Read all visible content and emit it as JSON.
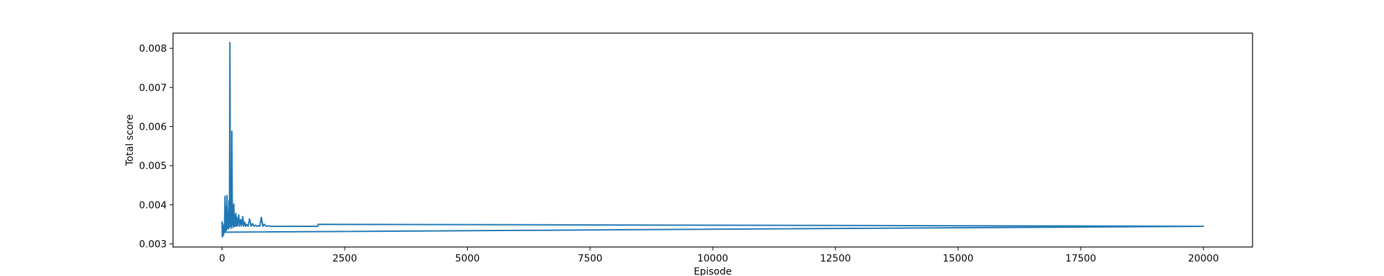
{
  "chart_data": {
    "type": "line",
    "title": "",
    "xlabel": "Episode",
    "ylabel": "Total score",
    "xlim": [
      -1000,
      21000
    ],
    "ylim": [
      0.00292,
      0.00839
    ],
    "grid": false,
    "colors": {
      "line": "#1f77b4",
      "axes": "#000000",
      "background": "#ffffff"
    },
    "x_ticks": [
      0,
      2500,
      5000,
      7500,
      10000,
      12500,
      15000,
      17500,
      20000
    ],
    "x_tick_labels": [
      "0",
      "2500",
      "5000",
      "7500",
      "10000",
      "12500",
      "15000",
      "17500",
      "20000"
    ],
    "y_ticks": [
      0.003,
      0.004,
      0.005,
      0.006,
      0.007,
      0.008
    ],
    "y_tick_labels": [
      "0.003",
      "0.004",
      "0.005",
      "0.006",
      "0.007",
      "0.008"
    ],
    "series": [
      {
        "x": [
          0,
          5,
          10,
          15,
          20,
          25,
          30,
          35,
          40,
          45,
          50,
          60,
          70,
          80,
          90,
          100,
          110,
          120,
          130,
          140,
          150,
          160,
          170,
          180,
          190,
          200,
          210,
          220,
          230,
          240,
          250,
          260,
          270,
          280,
          290,
          300,
          320,
          340,
          360,
          380,
          400,
          420,
          440,
          460,
          480,
          500,
          530,
          560,
          590,
          620,
          650,
          680,
          710,
          740,
          770,
          800,
          830,
          860,
          900,
          950,
          1000,
          1950,
          1960,
          20000,
          0,
          20000
        ],
        "y": [
          0.00358,
          0.00318,
          0.00352,
          0.0032,
          0.00345,
          0.00322,
          0.0034,
          0.00325,
          0.00348,
          0.0033,
          0.00342,
          0.00422,
          0.00332,
          0.00395,
          0.00335,
          0.00424,
          0.0034,
          0.0038,
          0.00338,
          0.0041,
          0.00342,
          0.00815,
          0.00345,
          0.00365,
          0.0034,
          0.00588,
          0.00348,
          0.00398,
          0.00342,
          0.00402,
          0.00345,
          0.00372,
          0.00346,
          0.00378,
          0.00345,
          0.00368,
          0.00346,
          0.00374,
          0.00345,
          0.00362,
          0.00346,
          0.0037,
          0.00345,
          0.00356,
          0.00345,
          0.0035,
          0.00345,
          0.00364,
          0.00345,
          0.00352,
          0.00345,
          0.00348,
          0.00345,
          0.00347,
          0.00345,
          0.00368,
          0.00345,
          0.0035,
          0.00345,
          0.00346,
          0.00345,
          0.00345,
          0.0035,
          0.00345,
          0.0033,
          0.00345
        ]
      }
    ]
  }
}
